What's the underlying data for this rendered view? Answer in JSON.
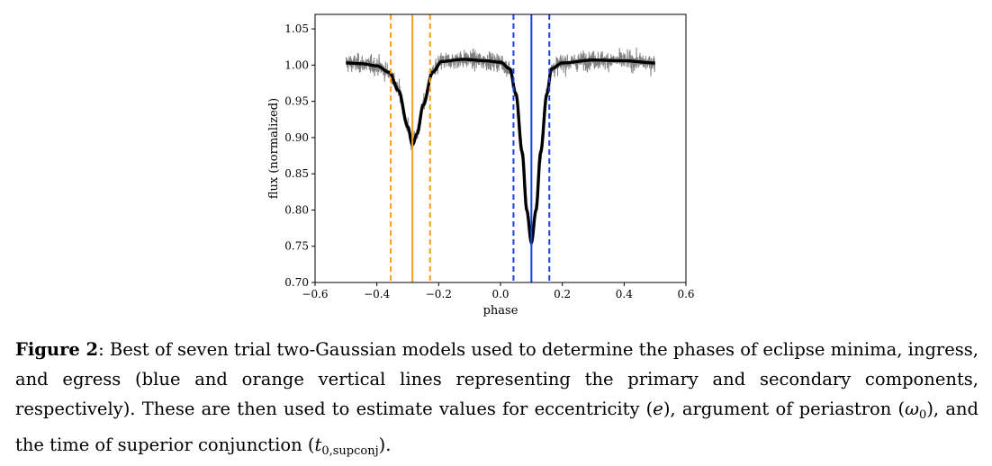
{
  "chart_data": {
    "type": "line",
    "xlabel": "phase",
    "ylabel": "flux (normalized)",
    "xlim": [
      -0.6,
      0.6
    ],
    "ylim": [
      0.7,
      1.07
    ],
    "xticks": [
      -0.6,
      -0.4,
      -0.2,
      0.0,
      0.2,
      0.4,
      0.6
    ],
    "xtick_labels": [
      "−0.6",
      "−0.4",
      "−0.2",
      "0.0",
      "0.2",
      "0.4",
      "0.6"
    ],
    "yticks": [
      0.7,
      0.75,
      0.8,
      0.85,
      0.9,
      0.95,
      1.0,
      1.05
    ],
    "ytick_labels": [
      "0.70",
      "0.75",
      "0.80",
      "0.85",
      "0.90",
      "0.95",
      "1.00",
      "1.05"
    ],
    "grid": false,
    "data_range": [
      -0.5,
      0.5
    ],
    "series": [
      {
        "role": "observed",
        "color": "#808080",
        "noise_sigma": 0.012,
        "points": [
          [
            -0.5,
            1.003
          ],
          [
            -0.45,
            1.002
          ],
          [
            -0.4,
            0.999
          ],
          [
            -0.36,
            0.99
          ],
          [
            -0.33,
            0.965
          ],
          [
            -0.3,
            0.915
          ],
          [
            -0.285,
            0.89
          ],
          [
            -0.27,
            0.905
          ],
          [
            -0.25,
            0.945
          ],
          [
            -0.22,
            0.99
          ],
          [
            -0.19,
            1.005
          ],
          [
            -0.12,
            1.008
          ],
          [
            -0.05,
            1.006
          ],
          [
            0.0,
            1.004
          ],
          [
            0.03,
            0.995
          ],
          [
            0.05,
            0.96
          ],
          [
            0.07,
            0.88
          ],
          [
            0.085,
            0.8
          ],
          [
            0.1,
            0.755
          ],
          [
            0.115,
            0.8
          ],
          [
            0.13,
            0.88
          ],
          [
            0.15,
            0.96
          ],
          [
            0.165,
            0.995
          ],
          [
            0.2,
            1.003
          ],
          [
            0.3,
            1.007
          ],
          [
            0.4,
            1.006
          ],
          [
            0.5,
            1.003
          ]
        ]
      },
      {
        "role": "model",
        "color": "#000000",
        "points": [
          [
            -0.5,
            1.003
          ],
          [
            -0.45,
            1.002
          ],
          [
            -0.4,
            0.999
          ],
          [
            -0.36,
            0.99
          ],
          [
            -0.33,
            0.965
          ],
          [
            -0.3,
            0.915
          ],
          [
            -0.285,
            0.89
          ],
          [
            -0.27,
            0.905
          ],
          [
            -0.25,
            0.945
          ],
          [
            -0.22,
            0.99
          ],
          [
            -0.19,
            1.005
          ],
          [
            -0.12,
            1.008
          ],
          [
            -0.05,
            1.006
          ],
          [
            0.0,
            1.004
          ],
          [
            0.03,
            0.995
          ],
          [
            0.05,
            0.96
          ],
          [
            0.07,
            0.88
          ],
          [
            0.085,
            0.8
          ],
          [
            0.1,
            0.755
          ],
          [
            0.115,
            0.8
          ],
          [
            0.13,
            0.88
          ],
          [
            0.15,
            0.96
          ],
          [
            0.165,
            0.995
          ],
          [
            0.2,
            1.003
          ],
          [
            0.3,
            1.007
          ],
          [
            0.4,
            1.006
          ],
          [
            0.5,
            1.003
          ]
        ]
      }
    ],
    "vlines": [
      {
        "x": -0.355,
        "color": "#f5a020",
        "style": "dashed",
        "role": "secondary-ingress"
      },
      {
        "x": -0.285,
        "color": "#f5a020",
        "style": "solid",
        "role": "secondary-minimum"
      },
      {
        "x": -0.228,
        "color": "#f5a020",
        "style": "dashed",
        "role": "secondary-egress"
      },
      {
        "x": 0.042,
        "color": "#1a3fe0",
        "style": "dashed",
        "role": "primary-ingress"
      },
      {
        "x": 0.1,
        "color": "#1a3fe0",
        "style": "solid",
        "role": "primary-minimum"
      },
      {
        "x": 0.158,
        "color": "#1a3fe0",
        "style": "dashed",
        "role": "primary-egress"
      }
    ]
  },
  "caption": {
    "label": "Figure 2",
    "text_1": ": Best of seven trial two-Gaussian models used to determine the phases of eclipse minima, ingress, and egress (blue and orange vertical lines representing the primary and secondary components, respectively). These are then used to estimate values for eccentricity (",
    "e": "e",
    "text_2": "), argument of periastron (",
    "omega": "ω",
    "omega_sub": "0",
    "text_3": "), and the time of superior conjunction (",
    "t": "t",
    "t_sub": "0,supconj",
    "text_4": ")."
  }
}
